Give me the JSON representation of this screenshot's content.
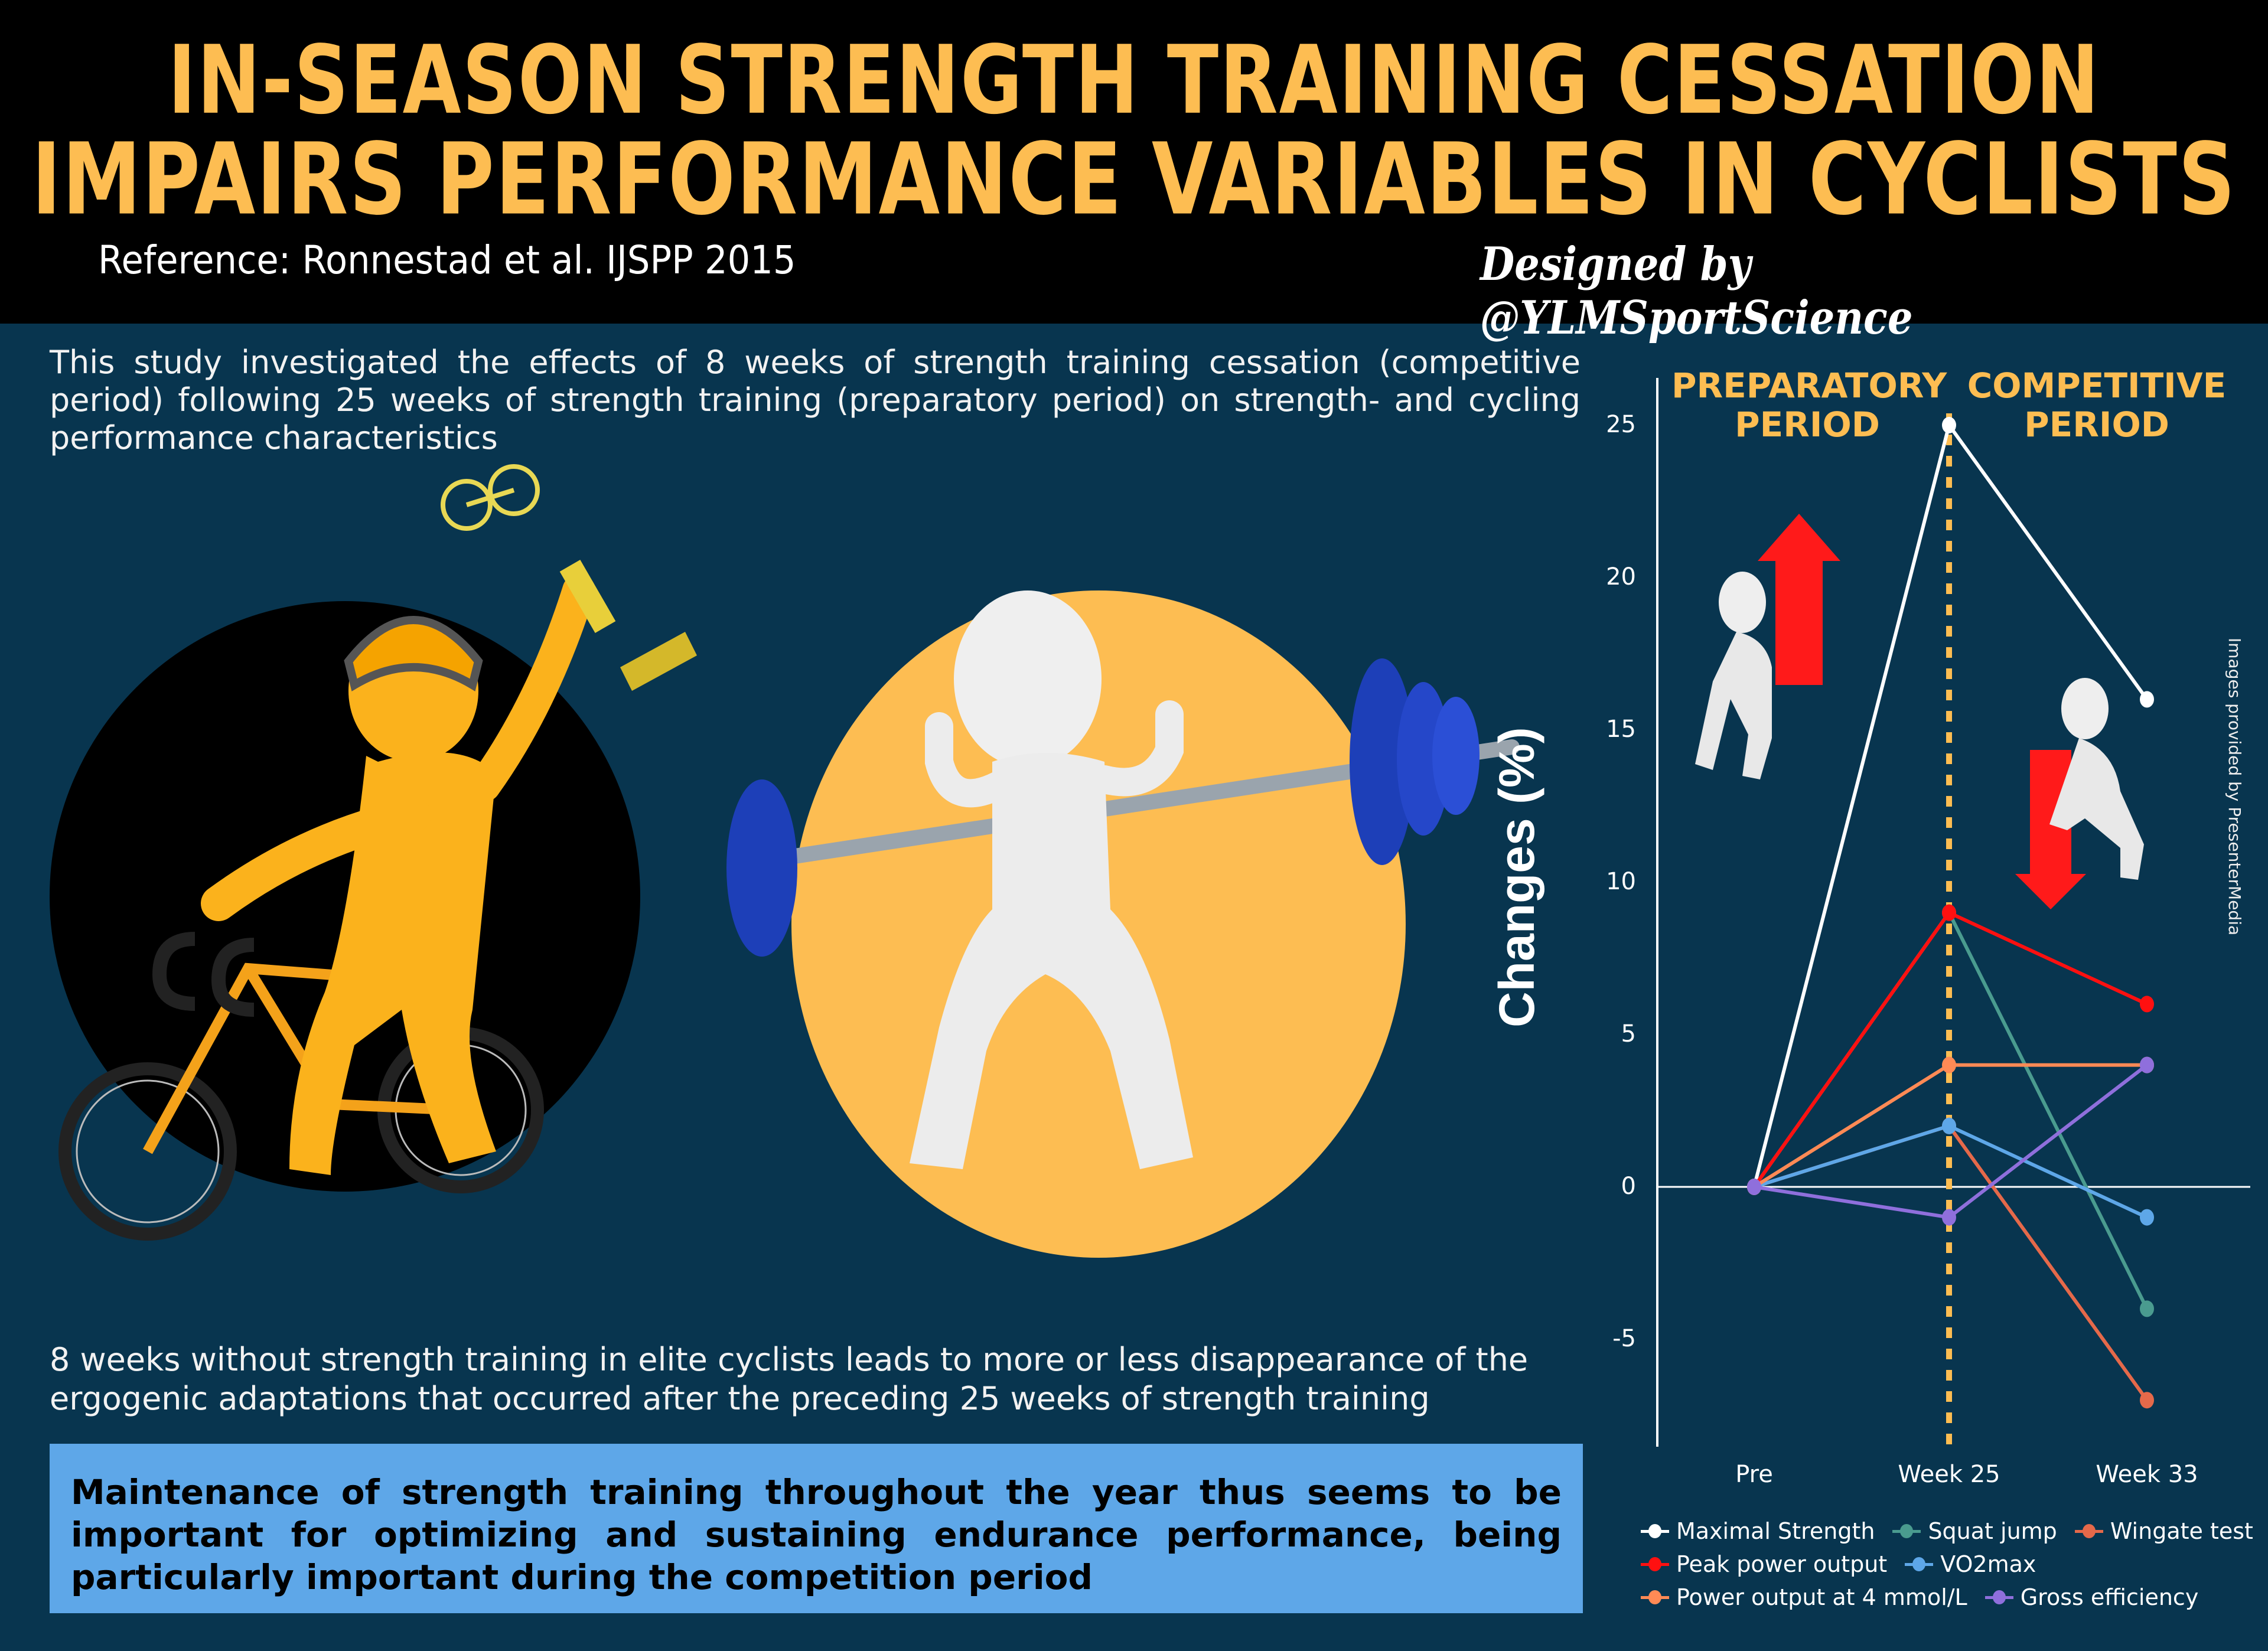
{
  "header": {
    "title_line1": "In-Season Strength Training Cessation",
    "title_line2": "Impairs Performance Variables in Cyclists",
    "reference": "Reference: Ronnestad et al. IJSPP 2015",
    "designer": "Designed by @YLMSportScience"
  },
  "body": {
    "intro": "This study investigated the effects of 8 weeks of strength training cessation (competitive period) following 25 weeks of strength training (preparatory period) on strength- and cycling performance characteristics",
    "finding": "8 weeks without strength training in elite cyclists leads to more or less disappearance of the ergogenic adaptations that occurred after the preceding 25 weeks of strength training",
    "key_message": "Maintenance of strength training throughout the year thus seems to be important for optimizing and sustaining endurance performance, being particularly important during the competition period"
  },
  "illustrations": {
    "left": "cyclist-with-trophy",
    "center": "figure-lifting-barbell",
    "chart_left": "figure-holding-up-arrow",
    "chart_right": "figure-holding-down-arrow"
  },
  "credit": "Images provided by PresenterMedia",
  "colors": {
    "background": "#08354f",
    "header_bg": "#000000",
    "title": "#fdbd52",
    "key_box": "#5ea7e8",
    "divider": "#fdbd52"
  },
  "chart_data": {
    "type": "line",
    "title": "",
    "xlabel": "",
    "ylabel": "Changes (%)",
    "categories": [
      "Pre",
      "Week 25",
      "Week 33"
    ],
    "ylim": [
      -8,
      27
    ],
    "yticks": [
      -5,
      0,
      5,
      10,
      15,
      20,
      25
    ],
    "grid": false,
    "zero_line": true,
    "annotations": [
      {
        "text": "Preparatory Period",
        "position": "between Pre and Week 25, top"
      },
      {
        "text": "Competitive Period",
        "position": "between Week 25 and Week 33, top"
      },
      {
        "type": "vertical-dashed-line",
        "x": "Week 25",
        "color": "#fdbd52"
      }
    ],
    "legend_position": "bottom",
    "series": [
      {
        "name": "Maximal Strength",
        "color": "#ffffff",
        "values": [
          0,
          25,
          16
        ]
      },
      {
        "name": "Squat jump",
        "color": "#4a9b8f",
        "values": [
          0,
          9,
          -4
        ]
      },
      {
        "name": "Wingate test",
        "color": "#e5694a",
        "values": [
          0,
          2,
          -7
        ]
      },
      {
        "name": "Peak power output",
        "color": "#ff1010",
        "values": [
          0,
          9,
          6
        ]
      },
      {
        "name": "VO2max",
        "color": "#5ea7e8",
        "values": [
          0,
          2,
          -1
        ]
      },
      {
        "name": "Power output at 4 mmol/L",
        "color": "#ff8a55",
        "values": [
          0,
          4,
          4
        ]
      },
      {
        "name": "Gross efficiency",
        "color": "#8f6fdc",
        "values": [
          0,
          -1,
          4
        ]
      }
    ]
  }
}
